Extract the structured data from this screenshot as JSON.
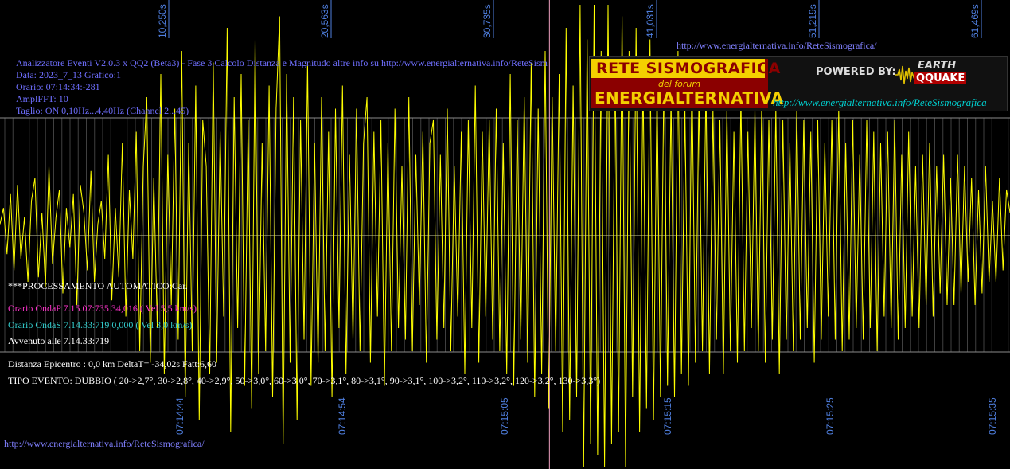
{
  "header": {
    "title_line": "Analizzatore Eventi V2.0.3 x QQ2 (Beta3) - Fase 3.Calcolo Distanza e Magnitudo altre info su http://www.energialternativa.info/ReteSism",
    "data_line": "Data: 2023_7_13 Grafico:1",
    "orario_line": "Orario: 07:14:34:-281",
    "ampl_line": "AmplFFT: 10",
    "taglio_line": "Taglio: ON 0,10Hz...4,40Hz      (Channel 2...45)"
  },
  "top_url": "http://www.energialternativa.info/ReteSismografica/",
  "bottom_url": "http://www.energialternativa.info/ReteSismografica/",
  "banner": {
    "rete_title": "RETE SISMOGRAFICA",
    "rete_forum": "del forum",
    "rete_sub": "ENERGIALTERNATIVA",
    "powered": "POWERED BY:",
    "earth": "EARTH",
    "qquake": "QQUAKE",
    "url": "http://www.energialternativa.info/ReteSismografica"
  },
  "processing": {
    "header": "***PROCESSAMENTO AUTOMATICO:Car.",
    "onda_p": "Orario OndaP 7.15.07:735  34,016 ( Vel 5,5 km/s)",
    "onda_s": "Orario OndaS 7.14.33:719  0,000 ( Vel 3,0 km/s)",
    "avvenuto": "Avvenuto alle 7.14.33:719",
    "distanza": "Distanza Epicentro : 0,0 km DeltaT= -34,02s  Fatt:6,60",
    "tipo_evento": "TIPO EVENTO: DUBBIO ( 20->2,7°, 30->2,8°, 40->2,9°, 50->3,0°, 60->3,0°, 70->3,1°, 80->3,1°, 90->3,1°, 100->3,2°, 110->3,2°, 120->3,2°, 130->3,3°)"
  },
  "colors": {
    "background": "#000000",
    "trace": "#ffff00",
    "grid": "#7a7a7a",
    "axis_labels": "#4f7fdf",
    "text_blue": "#6f6fff",
    "onda_p": "#ff33cc",
    "onda_s": "#33cccc",
    "marker": "#f0a0c0"
  },
  "chart_data": {
    "type": "line",
    "title": "",
    "xlabel": "",
    "ylabel": "",
    "grid": true,
    "top_ticks": [
      "10,250s",
      "20,563s",
      "30,735s",
      "41,031s",
      "51,219s",
      "61,469s"
    ],
    "bottom_ticks": [
      "07:14:44",
      "07:14:54",
      "07:15:05",
      "07:15:15",
      "07:15:25",
      "07:15:35"
    ],
    "x_range": [
      0,
      62.5
    ],
    "y_range": [
      -1,
      1
    ],
    "marker_x_s": 34.0,
    "series": [
      {
        "values": [
          0.05,
          0.12,
          -0.08,
          0.18,
          -0.15,
          0.22,
          -0.1,
          0.08,
          -0.2,
          0.15,
          0.25,
          -0.18,
          0.1,
          -0.22,
          0.3,
          -0.12,
          0.08,
          0.2,
          -0.25,
          0.12,
          -0.05,
          0.18,
          -0.3,
          0.22,
          0.1,
          -0.15,
          0.28,
          -0.2,
          0.05,
          0.15,
          -0.1,
          0.35,
          -0.28,
          0.12,
          -0.18,
          0.4,
          -0.35,
          0.2,
          -0.1,
          0.45,
          -0.5,
          0.3,
          0.6,
          -0.55,
          0.25,
          -0.4,
          0.7,
          -0.6,
          0.35,
          -0.3,
          0.55,
          -0.45,
          0.8,
          -0.7,
          0.4,
          -0.5,
          0.65,
          -0.8,
          0.5,
          0.3,
          -0.6,
          0.75,
          -0.55,
          0.45,
          -0.35,
          0.9,
          -0.85,
          0.6,
          -0.4,
          0.7,
          -0.65,
          0.5,
          -0.75,
          0.85,
          -0.6,
          0.4,
          -0.5,
          0.65,
          -0.7,
          0.55,
          0.95,
          -0.9,
          0.7,
          -0.55,
          0.6,
          -0.8,
          0.5,
          -0.45,
          0.75,
          -0.65,
          0.4,
          -0.55,
          0.6,
          -0.5,
          0.45,
          -0.7,
          0.55,
          -0.4,
          0.65,
          -0.6,
          0.35,
          -0.45,
          0.55,
          -0.5,
          0.4,
          0.6,
          -0.55,
          0.45,
          -0.35,
          0.5,
          -0.65,
          0.4,
          -0.5,
          0.55,
          -0.4,
          0.3,
          -0.45,
          0.6,
          -0.5,
          0.35,
          -0.3,
          0.45,
          -0.55,
          0.4,
          0.5,
          -0.45,
          0.35,
          -0.4,
          0.55,
          -0.5,
          0.3,
          -0.35,
          0.45,
          -0.6,
          0.5,
          -0.4,
          0.65,
          -0.55,
          0.45,
          -0.35,
          0.5,
          -0.45,
          0.55,
          -0.5,
          0.4,
          -0.6,
          0.7,
          -0.65,
          0.5,
          -0.45,
          0.6,
          -0.55,
          0.75,
          -0.7,
          0.55,
          -0.6,
          0.8,
          -0.75,
          0.6,
          -0.5,
          0.7,
          -0.85,
          0.9,
          -0.8,
          0.65,
          -0.7,
          1.0,
          -1.0,
          0.85,
          -0.9,
          1.0,
          -0.95,
          0.8,
          -1.0,
          1.0,
          -0.9,
          0.75,
          -0.85,
          0.95,
          -1.0,
          0.8,
          -0.7,
          0.9,
          -0.85,
          0.7,
          -0.75,
          0.85,
          -0.8,
          0.65,
          -0.7,
          0.75,
          -0.65,
          0.6,
          -0.7,
          0.8,
          -0.6,
          0.55,
          -0.65,
          0.7,
          -0.55,
          0.6,
          -0.5,
          0.65,
          -0.6,
          0.55,
          -0.45,
          0.5,
          -0.6,
          0.55,
          -0.5,
          0.45,
          -0.55,
          0.6,
          -0.5,
          0.45,
          -0.4,
          0.55,
          -0.5,
          0.6,
          -0.55,
          0.5,
          -0.45,
          0.55,
          -0.6,
          0.5,
          -0.45,
          0.4,
          -0.5,
          0.55,
          -0.45,
          0.5,
          -0.4,
          0.45,
          -0.55,
          0.5,
          -0.45,
          0.4,
          -0.35,
          0.5,
          -0.45,
          0.55,
          -0.5,
          0.4,
          -0.45,
          0.5,
          -0.4,
          0.35,
          -0.45,
          0.5,
          -0.4,
          0.45,
          -0.5,
          0.4,
          -0.35,
          0.45,
          -0.4,
          0.5,
          -0.45,
          0.35,
          -0.4,
          0.45,
          -0.35,
          0.3,
          -0.4,
          0.35,
          -0.3,
          0.4,
          -0.35,
          0.3,
          -0.25,
          0.35,
          -0.3,
          0.25,
          -0.3,
          0.35,
          -0.25,
          0.3,
          -0.2,
          0.25,
          -0.3,
          0.2,
          -0.25,
          0.3,
          -0.2,
          0.15,
          -0.2,
          0.25,
          -0.15,
          0.2,
          0.1
        ]
      }
    ]
  }
}
